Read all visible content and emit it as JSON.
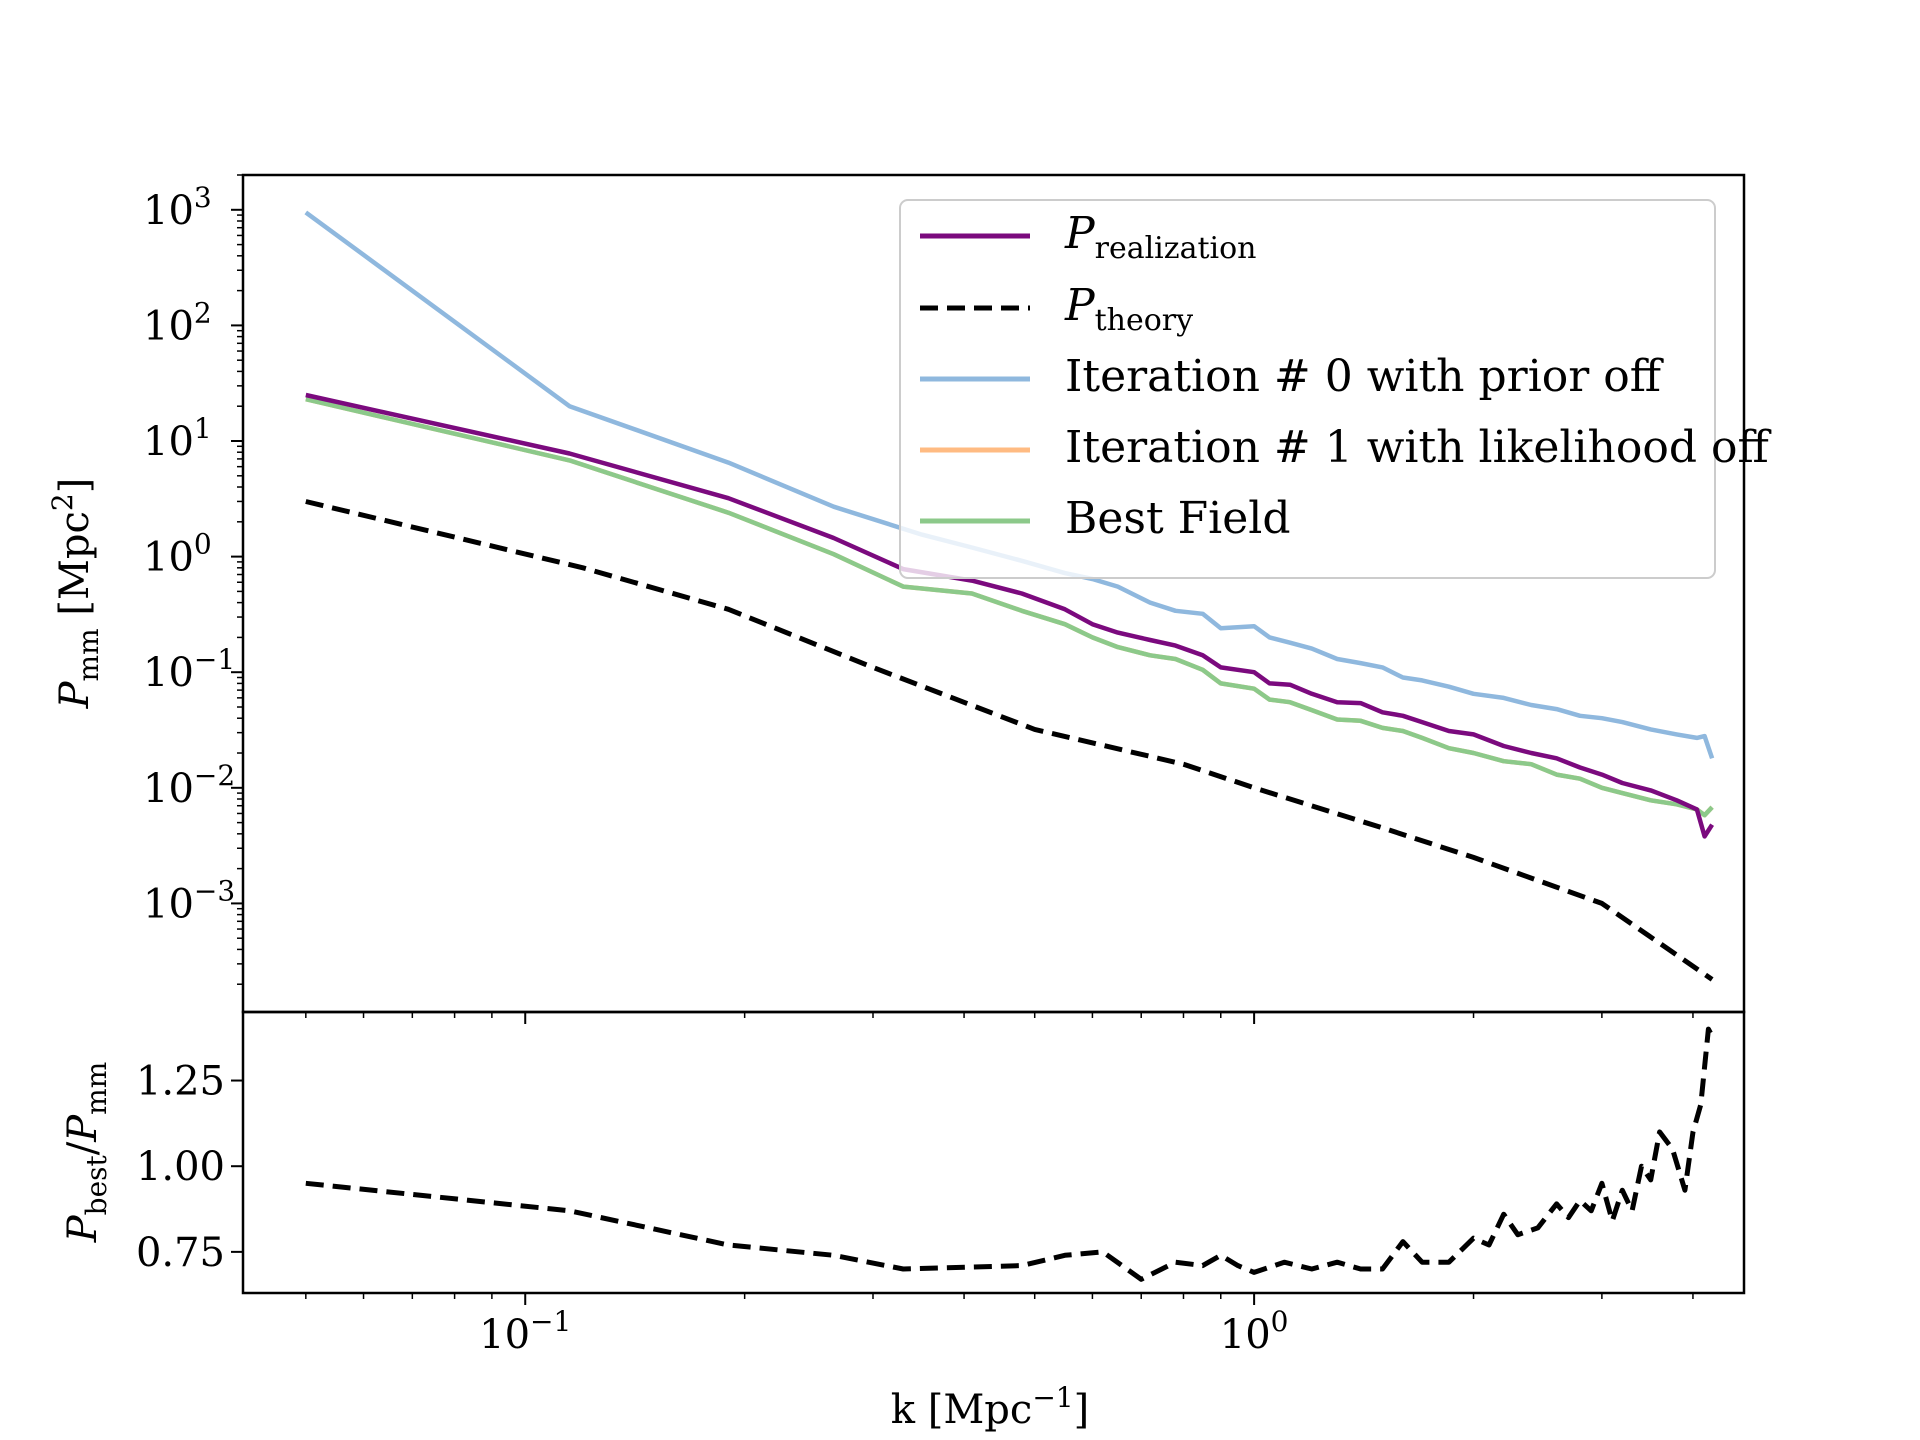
{
  "chart_data": [
    {
      "type": "line",
      "panel": "top",
      "xscale": "log",
      "yscale": "log",
      "xlim": [
        0.041,
        4.7
      ],
      "ylim": [
        0.000115,
        2000
      ],
      "xlabel": "",
      "ylabel": {
        "base": "P",
        "sub": "mm",
        "rest": " [Mpc",
        "sup": "2",
        "close": "]"
      },
      "yticks": [
        {
          "value": 1000,
          "base": "10",
          "exp": "3"
        },
        {
          "value": 100,
          "base": "10",
          "exp": "2"
        },
        {
          "value": 10,
          "base": "10",
          "exp": "1"
        },
        {
          "value": 1,
          "base": "10",
          "exp": "0"
        },
        {
          "value": 0.1,
          "base": "10",
          "exp": "−1"
        },
        {
          "value": 0.01,
          "base": "10",
          "exp": "−2"
        },
        {
          "value": 0.001,
          "base": "10",
          "exp": "−3"
        }
      ],
      "legend_position": "upper right",
      "grid": false,
      "series": [
        {
          "key": "iter0",
          "color": "#8fb8de",
          "style": "solid",
          "x": [
            0.05,
            0.115,
            0.19,
            0.265,
            0.35,
            0.41,
            0.48,
            0.55,
            0.6,
            0.65,
            0.72,
            0.78,
            0.85,
            0.9,
            1.0,
            1.05,
            1.12,
            1.2,
            1.3,
            1.4,
            1.5,
            1.6,
            1.7,
            1.85,
            2.0,
            2.2,
            2.4,
            2.6,
            2.8,
            3.0,
            3.2,
            3.5,
            3.8,
            4.05,
            4.15,
            4.25
          ],
          "values": [
            950,
            20,
            6.5,
            2.7,
            1.55,
            1.2,
            0.92,
            0.72,
            0.64,
            0.55,
            0.4,
            0.34,
            0.32,
            0.24,
            0.25,
            0.2,
            0.18,
            0.16,
            0.13,
            0.12,
            0.11,
            0.09,
            0.085,
            0.075,
            0.065,
            0.06,
            0.052,
            0.048,
            0.042,
            0.04,
            0.037,
            0.032,
            0.029,
            0.027,
            0.028,
            0.018
          ]
        },
        {
          "key": "iter1",
          "color": "#ffbb82",
          "style": "solid",
          "x": [
            0.05,
            0.115,
            0.19,
            0.265,
            0.33,
            0.41,
            0.48,
            0.55,
            0.6,
            0.65,
            0.72,
            0.78,
            0.85,
            0.9,
            1.0,
            1.05,
            1.12,
            1.2,
            1.3,
            1.4,
            1.5,
            1.6,
            1.7,
            1.85,
            2.0,
            2.2,
            2.4,
            2.6,
            2.8,
            3.0,
            3.2,
            3.5,
            3.8,
            4.05,
            4.15,
            4.25
          ],
          "values": [
            23,
            6.8,
            2.4,
            1.05,
            0.55,
            0.48,
            0.34,
            0.26,
            0.2,
            0.165,
            0.14,
            0.13,
            0.105,
            0.08,
            0.072,
            0.058,
            0.055,
            0.047,
            0.039,
            0.038,
            0.033,
            0.031,
            0.027,
            0.022,
            0.02,
            0.017,
            0.016,
            0.013,
            0.012,
            0.01,
            0.009,
            0.0078,
            0.0072,
            0.0065,
            0.0058,
            0.0068
          ]
        },
        {
          "key": "best",
          "color": "#8cc98a",
          "style": "solid",
          "x": [
            0.05,
            0.115,
            0.19,
            0.265,
            0.33,
            0.41,
            0.48,
            0.55,
            0.6,
            0.65,
            0.72,
            0.78,
            0.85,
            0.9,
            1.0,
            1.05,
            1.12,
            1.2,
            1.3,
            1.4,
            1.5,
            1.6,
            1.7,
            1.85,
            2.0,
            2.2,
            2.4,
            2.6,
            2.8,
            3.0,
            3.2,
            3.5,
            3.8,
            4.05,
            4.15,
            4.25
          ],
          "values": [
            23,
            6.8,
            2.4,
            1.05,
            0.55,
            0.48,
            0.34,
            0.26,
            0.2,
            0.165,
            0.14,
            0.13,
            0.105,
            0.08,
            0.072,
            0.058,
            0.055,
            0.047,
            0.039,
            0.038,
            0.033,
            0.031,
            0.027,
            0.022,
            0.02,
            0.017,
            0.016,
            0.013,
            0.012,
            0.01,
            0.009,
            0.0078,
            0.0072,
            0.0065,
            0.0058,
            0.0068
          ]
        },
        {
          "key": "realization",
          "color": "#7b0a7e",
          "style": "solid",
          "x": [
            0.05,
            0.115,
            0.19,
            0.265,
            0.33,
            0.41,
            0.48,
            0.55,
            0.6,
            0.65,
            0.72,
            0.78,
            0.85,
            0.9,
            1.0,
            1.05,
            1.12,
            1.2,
            1.3,
            1.4,
            1.5,
            1.6,
            1.7,
            1.85,
            2.0,
            2.2,
            2.4,
            2.6,
            2.8,
            3.0,
            3.2,
            3.5,
            3.8,
            4.05,
            4.15,
            4.25
          ],
          "values": [
            25,
            7.8,
            3.2,
            1.45,
            0.78,
            0.62,
            0.48,
            0.35,
            0.26,
            0.22,
            0.19,
            0.17,
            0.14,
            0.11,
            0.1,
            0.08,
            0.078,
            0.065,
            0.055,
            0.054,
            0.045,
            0.042,
            0.037,
            0.031,
            0.029,
            0.023,
            0.02,
            0.018,
            0.015,
            0.013,
            0.011,
            0.0095,
            0.0078,
            0.0065,
            0.0038,
            0.0048
          ]
        },
        {
          "key": "theory",
          "color": "#000000",
          "style": "dashed",
          "x": [
            0.05,
            0.12,
            0.19,
            0.3,
            0.5,
            0.8,
            1.0,
            1.5,
            2.0,
            3.0,
            4.25
          ],
          "values": [
            3.0,
            0.8,
            0.35,
            0.11,
            0.032,
            0.016,
            0.01,
            0.0045,
            0.0025,
            0.001,
            0.00022
          ]
        }
      ],
      "legend": [
        {
          "series_key": "realization",
          "color": "#7b0a7e",
          "style": "solid",
          "label_base": "P",
          "label_sub": "realization"
        },
        {
          "series_key": "theory",
          "color": "#000000",
          "style": "dashed",
          "label_base": "P",
          "label_sub": "theory"
        },
        {
          "series_key": "iter0",
          "color": "#8fb8de",
          "style": "solid",
          "label": "Iteration # 0 with prior off"
        },
        {
          "series_key": "iter1",
          "color": "#ffbb82",
          "style": "solid",
          "label": "Iteration # 1 with likelihood off"
        },
        {
          "series_key": "best",
          "color": "#8cc98a",
          "style": "solid",
          "label": "Best Field"
        }
      ]
    },
    {
      "type": "line",
      "panel": "bottom",
      "xscale": "log",
      "yscale": "linear",
      "xlim": [
        0.041,
        4.7
      ],
      "ylim": [
        0.63,
        1.45
      ],
      "xlabel": {
        "text": "k [Mpc",
        "sup": "−1",
        "close": "]"
      },
      "ylabel": {
        "base1": "P",
        "sub1": "best",
        "slash": "/",
        "base2": "P",
        "sub2": "mm"
      },
      "xticks": [
        {
          "value": 0.1,
          "base": "10",
          "exp": "−1"
        },
        {
          "value": 1,
          "base": "10",
          "exp": "0"
        }
      ],
      "yticks": [
        {
          "value": 0.75,
          "label": "0.75"
        },
        {
          "value": 1.0,
          "label": "1.00"
        },
        {
          "value": 1.25,
          "label": "1.25"
        }
      ],
      "grid": false,
      "series": [
        {
          "key": "ratio",
          "color": "#000000",
          "style": "dashed",
          "x": [
            0.05,
            0.115,
            0.19,
            0.265,
            0.33,
            0.48,
            0.55,
            0.62,
            0.7,
            0.78,
            0.85,
            0.9,
            0.95,
            1.0,
            1.1,
            1.2,
            1.3,
            1.4,
            1.5,
            1.6,
            1.7,
            1.85,
            2.0,
            2.1,
            2.2,
            2.3,
            2.45,
            2.6,
            2.7,
            2.8,
            2.9,
            3.0,
            3.1,
            3.2,
            3.3,
            3.4,
            3.5,
            3.6,
            3.75,
            3.9,
            4.0,
            4.1,
            4.2,
            4.25
          ],
          "values": [
            0.95,
            0.87,
            0.77,
            0.74,
            0.7,
            0.71,
            0.74,
            0.75,
            0.67,
            0.72,
            0.71,
            0.74,
            0.71,
            0.69,
            0.72,
            0.7,
            0.72,
            0.7,
            0.7,
            0.78,
            0.72,
            0.72,
            0.79,
            0.77,
            0.86,
            0.8,
            0.82,
            0.89,
            0.85,
            0.9,
            0.87,
            0.95,
            0.84,
            0.93,
            0.87,
            1.0,
            0.96,
            1.1,
            1.05,
            0.93,
            1.1,
            1.18,
            1.4,
            1.38
          ]
        }
      ]
    }
  ]
}
